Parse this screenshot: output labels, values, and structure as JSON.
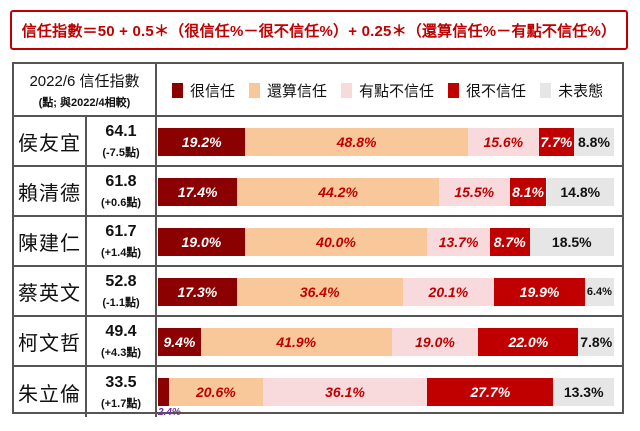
{
  "formula": "信任指數＝50 + 0.5＊（很信任%－很不信任%）+ 0.25＊（還算信任%－有點不信任%）",
  "header": {
    "title": "2022/6 信任指數",
    "subtitle": "(點; 與2022/4相較)"
  },
  "colors": {
    "很信任": "#8b0000",
    "還算信任": "#f8c89a",
    "有點不信任": "#f8d9dc",
    "很不信任": "#c00000",
    "未表態": "#e6e6e6"
  },
  "chart_data": {
    "type": "bar",
    "stacked": true,
    "orientation": "horizontal",
    "categories": [
      "侯友宜",
      "賴清德",
      "陳建仁",
      "蔡英文",
      "柯文哲",
      "朱立倫"
    ],
    "scores": [
      "64.1",
      "61.8",
      "61.7",
      "52.8",
      "49.4",
      "33.5"
    ],
    "changes": [
      "(-7.5點)",
      "(+0.6點)",
      "(+1.4點)",
      "(-1.1點)",
      "(+4.3點)",
      "(+1.7點)"
    ],
    "series": [
      {
        "name": "很信任",
        "values": [
          19.2,
          17.4,
          19.0,
          17.3,
          9.4,
          2.4
        ]
      },
      {
        "name": "還算信任",
        "values": [
          48.8,
          44.2,
          40.0,
          36.4,
          41.9,
          20.6
        ]
      },
      {
        "name": "有點不信任",
        "values": [
          15.6,
          15.5,
          13.7,
          20.1,
          19.0,
          36.1
        ]
      },
      {
        "name": "很不信任",
        "values": [
          7.7,
          8.1,
          8.7,
          19.9,
          22.0,
          27.7
        ]
      },
      {
        "name": "未表態",
        "values": [
          8.8,
          14.8,
          18.5,
          6.4,
          7.8,
          13.3
        ]
      }
    ],
    "legend_position": "top"
  }
}
